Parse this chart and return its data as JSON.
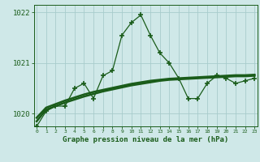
{
  "title": "Graphe pression niveau de la mer (hPa)",
  "bg_color": "#cfe8e8",
  "line_color": "#1a5c1a",
  "grid_color": "#a8cccc",
  "x_values": [
    0,
    1,
    2,
    3,
    4,
    5,
    6,
    7,
    8,
    9,
    10,
    11,
    12,
    13,
    14,
    15,
    16,
    17,
    18,
    19,
    20,
    21,
    22,
    23
  ],
  "y_main": [
    1019.75,
    1020.05,
    1020.15,
    1020.15,
    1020.5,
    1020.6,
    1020.3,
    1020.75,
    1020.85,
    1021.55,
    1021.8,
    1021.95,
    1021.55,
    1021.2,
    1021.0,
    1020.7,
    1020.3,
    1020.3,
    1020.6,
    1020.75,
    1020.7,
    1020.6,
    1020.65,
    1020.7
  ],
  "y_trend1": [
    1019.85,
    1020.08,
    1020.15,
    1020.22,
    1020.28,
    1020.34,
    1020.39,
    1020.44,
    1020.48,
    1020.52,
    1020.56,
    1020.59,
    1020.62,
    1020.65,
    1020.67,
    1020.68,
    1020.69,
    1020.7,
    1020.71,
    1020.72,
    1020.73,
    1020.74,
    1020.74,
    1020.75
  ],
  "y_trend2": [
    1019.92,
    1020.12,
    1020.19,
    1020.26,
    1020.32,
    1020.38,
    1020.43,
    1020.47,
    1020.51,
    1020.55,
    1020.59,
    1020.62,
    1020.65,
    1020.67,
    1020.69,
    1020.7,
    1020.71,
    1020.72,
    1020.73,
    1020.74,
    1020.75,
    1020.76,
    1020.76,
    1020.77
  ],
  "ylim": [
    1019.75,
    1022.15
  ],
  "yticks": [
    1020,
    1021,
    1022
  ],
  "xlim": [
    -0.3,
    23.3
  ],
  "xticks": [
    0,
    1,
    2,
    3,
    4,
    5,
    6,
    7,
    8,
    9,
    10,
    11,
    12,
    13,
    14,
    15,
    16,
    17,
    18,
    19,
    20,
    21,
    22,
    23
  ]
}
